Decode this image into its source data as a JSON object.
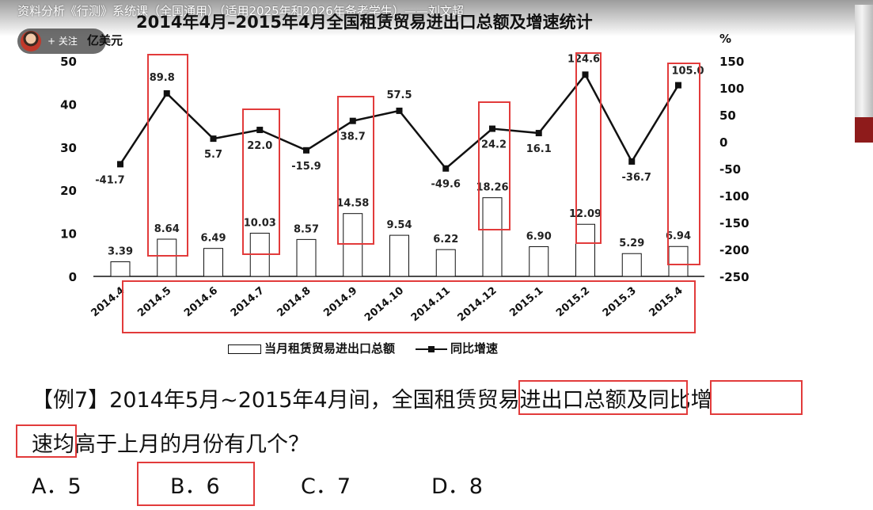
{
  "video": {
    "title": "资料分析《行测》系统课（全国通用）（适用2025年和2026年备考学生）——刘文超",
    "follow_label": "+ 关注"
  },
  "chart_data": {
    "type": "bar",
    "title": "2014年4月–2015年4月全国租赁贸易进出口总额及增速统计",
    "ylabel_left": "亿美元",
    "ylabel_right": "%",
    "categories": [
      "2014.4",
      "2014.5",
      "2014.6",
      "2014.7",
      "2014.8",
      "2014.9",
      "2014.10",
      "2014.11",
      "2014.12",
      "2015.1",
      "2015.2",
      "2015.3",
      "2015.4"
    ],
    "series": [
      {
        "name": "当月租赁贸易进出口总额",
        "type": "bar",
        "axis": "left",
        "values": [
          3.39,
          8.64,
          6.49,
          10.03,
          8.57,
          14.58,
          9.54,
          6.22,
          18.26,
          6.9,
          12.09,
          5.29,
          6.94
        ]
      },
      {
        "name": "同比增速",
        "type": "line",
        "axis": "right",
        "values": [
          -41.7,
          89.8,
          5.7,
          22.0,
          -15.9,
          38.7,
          57.5,
          -49.6,
          24.2,
          16.1,
          124.6,
          -36.7,
          105.0
        ]
      }
    ],
    "bar_labels": [
      "3.39",
      "8.64",
      "6.49",
      "10.03",
      "8.57",
      "14.58",
      "9.54",
      "6.22",
      "18.26",
      "6.90",
      "12.09",
      "5.29",
      "6.94"
    ],
    "line_labels": [
      "-41.7",
      "89.8",
      "5.7",
      "22.0",
      "-15.9",
      "38.7",
      "57.5",
      "-49.6",
      "24.2",
      "16.1",
      "124.6",
      "-36.7",
      "105.0"
    ],
    "ylim_left": [
      0,
      50
    ],
    "ylim_right": [
      -250,
      150
    ],
    "yticks_left": [
      "0",
      "10",
      "20",
      "30",
      "40",
      "50"
    ],
    "yticks_right": [
      "-250",
      "-200",
      "-150",
      "-100",
      "-50",
      "0",
      "50",
      "100",
      "150"
    ],
    "legend": [
      "当月租赁贸易进出口总额",
      "同比增速"
    ],
    "legend_position": "bottom",
    "grid": false
  },
  "question": {
    "line1": "【例7】2014年5月~2015年4月间，全国租赁贸易进出口总额及同比增",
    "line2": "速均高于上月的月份有几个？"
  },
  "options": [
    "A．5",
    "B．6",
    "C．7",
    "D．8"
  ],
  "colors": {
    "highlight_box": "#e23b3b",
    "bar_fill": "#ffffff",
    "ink": "#111111"
  }
}
